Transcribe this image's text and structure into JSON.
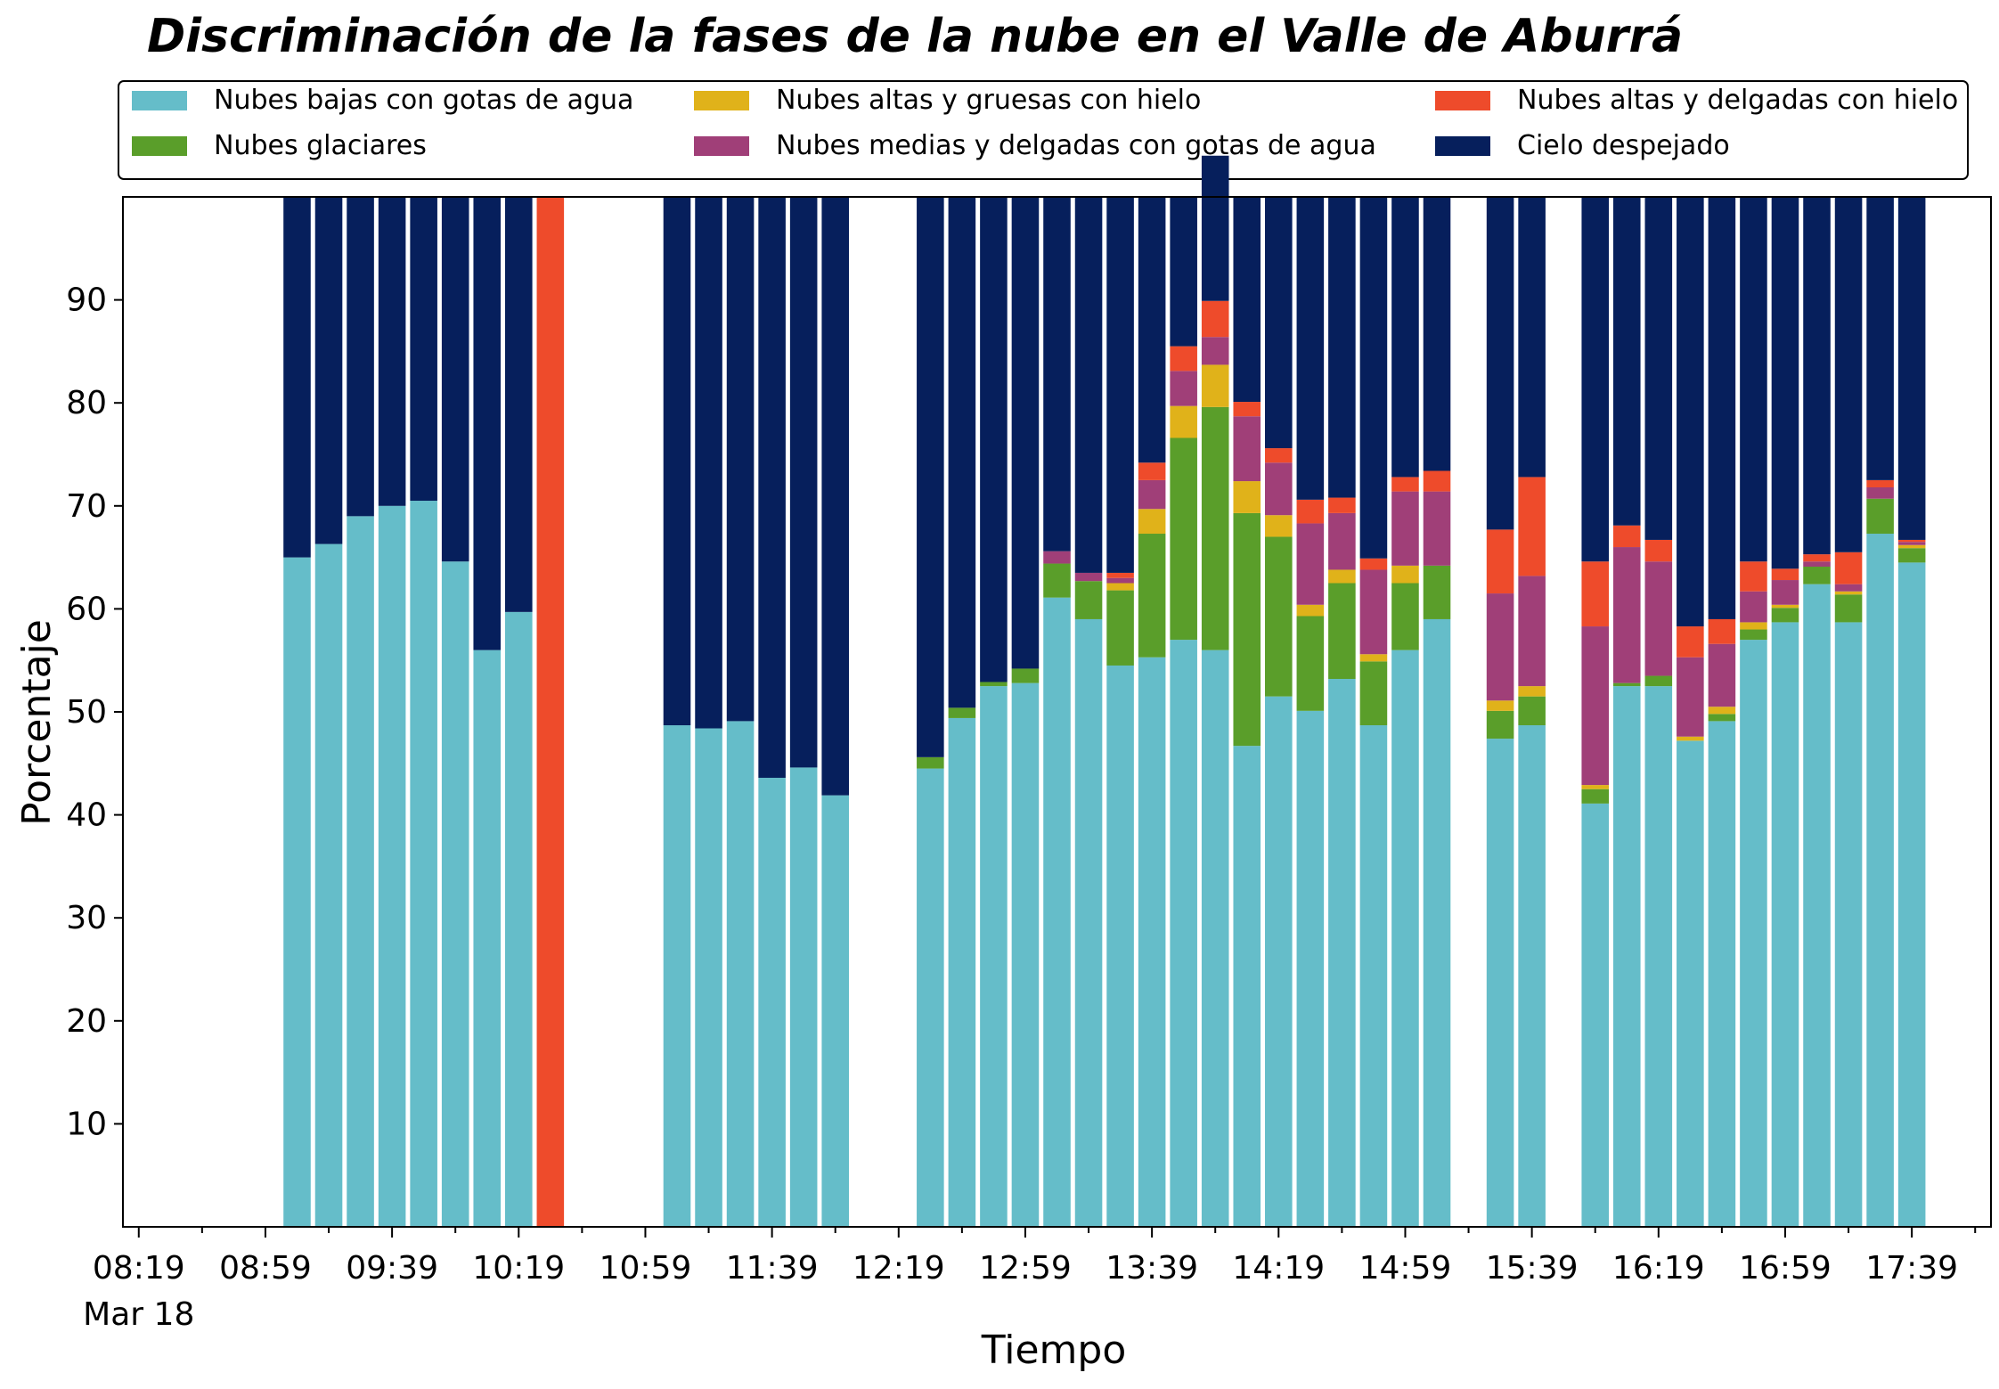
{
  "chart_data": {
    "type": "bar",
    "stacked": true,
    "title": "Discriminación de la fases de la nube en el Valle de Aburrá",
    "xlabel": "Tiempo",
    "ylabel": "Porcentaje",
    "ylim": [
      0,
      100
    ],
    "yticks": [
      10,
      20,
      30,
      40,
      50,
      60,
      70,
      80,
      90
    ],
    "xlim": [
      0,
      59
    ],
    "xticks": [
      {
        "pos": 0.5,
        "label": "08:19",
        "sublabel": "Mar 18"
      },
      {
        "pos": 4.5,
        "label": "08:59"
      },
      {
        "pos": 8.5,
        "label": "09:39"
      },
      {
        "pos": 12.5,
        "label": "10:19"
      },
      {
        "pos": 16.5,
        "label": "10:59"
      },
      {
        "pos": 20.5,
        "label": "11:39"
      },
      {
        "pos": 24.5,
        "label": "12:19"
      },
      {
        "pos": 28.5,
        "label": "12:59"
      },
      {
        "pos": 32.5,
        "label": "13:39"
      },
      {
        "pos": 36.5,
        "label": "14:19"
      },
      {
        "pos": 40.5,
        "label": "14:59"
      },
      {
        "pos": 44.5,
        "label": "15:39"
      },
      {
        "pos": 48.5,
        "label": "16:19"
      },
      {
        "pos": 52.5,
        "label": "16:59"
      },
      {
        "pos": 56.5,
        "label": "17:39"
      }
    ],
    "minor_xticks": [
      2.5,
      6.5,
      10.5,
      14.5,
      18.5,
      22.5,
      26.5,
      30.5,
      34.5,
      38.5,
      42.5,
      46.5,
      50.5,
      54.5,
      58.5
    ],
    "legend_position": "top, above plot, 3 columns",
    "series": [
      {
        "name": "Nubes bajas con gotas de agua",
        "color": "#65bdc9"
      },
      {
        "name": "Nubes glaciares",
        "color": "#5a9e2a"
      },
      {
        "name": "Nubes altas y gruesas con hielo",
        "color": "#e0b21a"
      },
      {
        "name": "Nubes medias y delgadas con gotas de agua",
        "color": "#a03f78"
      },
      {
        "name": "Nubes altas y delgadas con hielo",
        "color": "#ee4b2b"
      },
      {
        "name": "Cielo despejado",
        "color": "#061f5c"
      }
    ],
    "bars": [
      {
        "x": 5.5,
        "values": [
          65,
          0,
          0,
          0,
          0,
          35
        ]
      },
      {
        "x": 6.5,
        "values": [
          66.3,
          0,
          0,
          0,
          0,
          33.7
        ]
      },
      {
        "x": 7.5,
        "values": [
          69,
          0,
          0,
          0,
          0,
          31
        ]
      },
      {
        "x": 8.5,
        "values": [
          70,
          0,
          0,
          0,
          0,
          30
        ]
      },
      {
        "x": 9.5,
        "values": [
          70.5,
          0,
          0,
          0,
          0,
          29.5
        ]
      },
      {
        "x": 10.5,
        "values": [
          64.6,
          0,
          0,
          0,
          0,
          35.4
        ]
      },
      {
        "x": 11.5,
        "values": [
          56,
          0,
          0,
          0,
          0,
          44
        ]
      },
      {
        "x": 12.5,
        "values": [
          59.7,
          0,
          0,
          0,
          0,
          40.3
        ]
      },
      {
        "x": 13.5,
        "values": [
          0,
          0,
          0,
          0,
          100,
          0
        ]
      },
      {
        "x": 17.5,
        "values": [
          48.7,
          0,
          0,
          0,
          0,
          51.3
        ]
      },
      {
        "x": 18.5,
        "values": [
          48.4,
          0,
          0,
          0,
          0,
          51.6
        ]
      },
      {
        "x": 19.5,
        "values": [
          49.1,
          0,
          0,
          0,
          0,
          50.9
        ]
      },
      {
        "x": 20.5,
        "values": [
          43.6,
          0,
          0,
          0,
          0,
          56.4
        ]
      },
      {
        "x": 21.5,
        "values": [
          44.6,
          0,
          0,
          0,
          0,
          55.4
        ]
      },
      {
        "x": 22.5,
        "values": [
          41.9,
          0,
          0,
          0,
          0,
          58.1
        ]
      },
      {
        "x": 25.5,
        "values": [
          44.5,
          1.1,
          0,
          0,
          0,
          54.4
        ]
      },
      {
        "x": 26.5,
        "values": [
          49.4,
          1,
          0,
          0,
          0,
          49.6
        ]
      },
      {
        "x": 27.5,
        "values": [
          52.5,
          0.4,
          0,
          0,
          0,
          47.1
        ]
      },
      {
        "x": 28.5,
        "values": [
          52.8,
          1.4,
          0,
          0,
          0,
          45.8
        ]
      },
      {
        "x": 29.5,
        "values": [
          61.1,
          3.3,
          0,
          1.2,
          0,
          34.4
        ]
      },
      {
        "x": 30.5,
        "values": [
          59,
          3.7,
          0,
          0.8,
          0,
          36.5
        ]
      },
      {
        "x": 31.5,
        "values": [
          54.5,
          7.3,
          0.7,
          0.5,
          0.5,
          36.5
        ]
      },
      {
        "x": 32.5,
        "values": [
          55.3,
          12,
          2.4,
          2.8,
          1.7,
          25.8
        ]
      },
      {
        "x": 33.5,
        "values": [
          57,
          19.6,
          3.1,
          3.4,
          2.4,
          14.5
        ]
      },
      {
        "x": 34.5,
        "values": [
          56,
          23.6,
          4.1,
          2.7,
          3.5,
          14.1
        ]
      },
      {
        "x": 35.5,
        "values": [
          46.7,
          22.6,
          3.1,
          6.3,
          1.4,
          19.9
        ]
      },
      {
        "x": 36.5,
        "values": [
          51.5,
          15.5,
          2.1,
          5.1,
          1.4,
          24.4
        ]
      },
      {
        "x": 37.5,
        "values": [
          50.1,
          9.2,
          1.1,
          7.9,
          2.3,
          29.4
        ]
      },
      {
        "x": 38.5,
        "values": [
          53.2,
          9.3,
          1.3,
          5.5,
          1.5,
          29.2
        ]
      },
      {
        "x": 39.5,
        "values": [
          48.7,
          6.2,
          0.7,
          8.2,
          1.1,
          35.1
        ]
      },
      {
        "x": 40.5,
        "values": [
          56,
          6.5,
          1.7,
          7.2,
          1.4,
          27.2
        ]
      },
      {
        "x": 41.5,
        "values": [
          59,
          5.2,
          0,
          7.2,
          2,
          26.6
        ]
      },
      {
        "x": 43.5,
        "values": [
          47.4,
          2.7,
          1,
          10.4,
          6.2,
          32.3
        ]
      },
      {
        "x": 44.5,
        "values": [
          48.7,
          2.8,
          1,
          10.7,
          9.6,
          27.2
        ]
      },
      {
        "x": 46.5,
        "values": [
          41.1,
          1.4,
          0.4,
          15.4,
          6.3,
          35.4
        ]
      },
      {
        "x": 47.5,
        "values": [
          52.5,
          0.3,
          0,
          13.2,
          2.1,
          31.9
        ]
      },
      {
        "x": 48.5,
        "values": [
          52.5,
          1,
          0,
          11.1,
          2.1,
          33.3
        ]
      },
      {
        "x": 49.5,
        "values": [
          47.2,
          0,
          0.4,
          7.7,
          3,
          41.7
        ]
      },
      {
        "x": 50.5,
        "values": [
          49.1,
          0.7,
          0.7,
          6.1,
          2.4,
          41
        ]
      },
      {
        "x": 51.5,
        "values": [
          57,
          1,
          0.7,
          3,
          2.9,
          35.4
        ]
      },
      {
        "x": 52.5,
        "values": [
          58.7,
          1.4,
          0.3,
          2.4,
          1.1,
          36.1
        ]
      },
      {
        "x": 53.5,
        "values": [
          62.4,
          1.7,
          0,
          0.5,
          0.7,
          34.7
        ]
      },
      {
        "x": 54.5,
        "values": [
          58.7,
          2.7,
          0.3,
          0.7,
          3.1,
          34.5
        ]
      },
      {
        "x": 55.5,
        "values": [
          67.3,
          3.4,
          0,
          1.1,
          0.7,
          27.5
        ]
      },
      {
        "x": 56.5,
        "values": [
          64.5,
          1.4,
          0.3,
          0.3,
          0.2,
          33.3
        ]
      }
    ]
  }
}
